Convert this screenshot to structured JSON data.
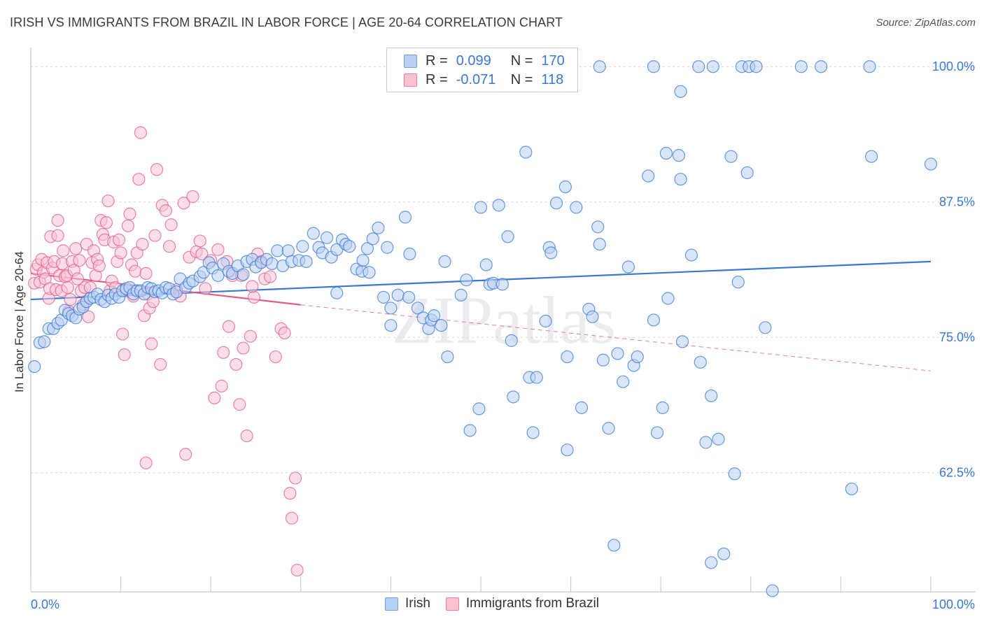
{
  "title": "IRISH VS IMMIGRANTS FROM BRAZIL IN LABOR FORCE | AGE 20-64 CORRELATION CHART",
  "source": "Source: ZipAtlas.com",
  "watermark": "ZIPatlas",
  "legend": {
    "r_label": "R =",
    "n_label": "N =",
    "rows": [
      {
        "name": "Irish",
        "r": "0.099",
        "n": "170",
        "color": "#6a9fe0",
        "fill": "#b9d0f2"
      },
      {
        "name": "Immigrants from Brazil",
        "r": "-0.071",
        "n": "118",
        "color": "#ec7fa0",
        "fill": "#f7c3d3"
      }
    ]
  },
  "chart_data": {
    "type": "scatter",
    "ylabel": "In Labor Force | Age 20-64",
    "xlim": [
      0,
      100
    ],
    "ylim": [
      51.5,
      101.5
    ],
    "y_ticks": [
      {
        "value": 100,
        "label": "100.0%"
      },
      {
        "value": 87.5,
        "label": "87.5%"
      },
      {
        "value": 75,
        "label": "75.0%"
      },
      {
        "value": 62.5,
        "label": "62.5%"
      }
    ],
    "x_tick_labels": {
      "left": "0.0%",
      "right": "100.0%"
    },
    "grid": "horizontal dashed",
    "series": [
      {
        "name": "Irish",
        "color": "#3a78d4",
        "fill": "#b9d0f2",
        "trend": {
          "x": [
            0,
            100
          ],
          "y": [
            78.5,
            82.0
          ],
          "dashed": false
        },
        "points": [
          [
            0.4,
            72.3
          ],
          [
            1.0,
            74.5
          ],
          [
            1.5,
            74.6
          ],
          [
            2.0,
            75.8
          ],
          [
            2.5,
            75.8
          ],
          [
            3.0,
            76.3
          ],
          [
            3.4,
            76.6
          ],
          [
            3.8,
            77.5
          ],
          [
            4.2,
            77.2
          ],
          [
            4.6,
            77.0
          ],
          [
            5.0,
            76.8
          ],
          [
            5.4,
            77.6
          ],
          [
            5.8,
            77.8
          ],
          [
            6.2,
            78.3
          ],
          [
            6.6,
            78.6
          ],
          [
            7.0,
            78.7
          ],
          [
            7.4,
            79.0
          ],
          [
            7.8,
            78.5
          ],
          [
            8.2,
            78.3
          ],
          [
            8.6,
            78.9
          ],
          [
            9.0,
            78.6
          ],
          [
            9.4,
            79.0
          ],
          [
            9.8,
            78.7
          ],
          [
            10.2,
            79.3
          ],
          [
            10.6,
            79.5
          ],
          [
            11.0,
            79.6
          ],
          [
            11.4,
            79.0
          ],
          [
            11.8,
            79.3
          ],
          [
            12.2,
            79.3
          ],
          [
            12.6,
            79.0
          ],
          [
            13.0,
            79.6
          ],
          [
            13.4,
            79.5
          ],
          [
            13.8,
            79.2
          ],
          [
            14.2,
            79.3
          ],
          [
            14.6,
            79.1
          ],
          [
            15.0,
            79.6
          ],
          [
            15.4,
            79.5
          ],
          [
            15.8,
            79.0
          ],
          [
            16.2,
            79.2
          ],
          [
            16.6,
            80.4
          ],
          [
            17.2,
            79.6
          ],
          [
            17.6,
            80.0
          ],
          [
            18.0,
            80.2
          ],
          [
            18.8,
            80.6
          ],
          [
            19.2,
            81.0
          ],
          [
            19.8,
            81.9
          ],
          [
            20.2,
            81.4
          ],
          [
            20.8,
            80.7
          ],
          [
            21.4,
            81.8
          ],
          [
            22.0,
            81.1
          ],
          [
            22.4,
            80.9
          ],
          [
            23.0,
            81.6
          ],
          [
            23.6,
            80.8
          ],
          [
            24.0,
            82.0
          ],
          [
            24.6,
            82.2
          ],
          [
            25.0,
            81.5
          ],
          [
            25.6,
            81.9
          ],
          [
            26.2,
            82.2
          ],
          [
            26.8,
            81.8
          ],
          [
            27.4,
            83.0
          ],
          [
            28.0,
            81.6
          ],
          [
            28.6,
            83.0
          ],
          [
            29.0,
            82.0
          ],
          [
            29.8,
            82.1
          ],
          [
            30.2,
            83.4
          ],
          [
            30.6,
            82.0
          ],
          [
            31.4,
            84.6
          ],
          [
            32.0,
            83.3
          ],
          [
            32.4,
            82.8
          ],
          [
            32.9,
            84.2
          ],
          [
            33.4,
            82.4
          ],
          [
            34.0,
            83.1
          ],
          [
            34.6,
            84.0
          ],
          [
            35.0,
            83.6
          ],
          [
            35.4,
            83.4
          ],
          [
            34.0,
            79.1
          ],
          [
            36.2,
            81.3
          ],
          [
            36.8,
            81.1
          ],
          [
            36.9,
            82.1
          ],
          [
            37.4,
            83.2
          ],
          [
            37.6,
            81.0
          ],
          [
            38.0,
            84.1
          ],
          [
            38.6,
            85.1
          ],
          [
            39.2,
            78.7
          ],
          [
            39.6,
            83.3
          ],
          [
            40.0,
            77.7
          ],
          [
            40.8,
            78.9
          ],
          [
            40.0,
            76.1
          ],
          [
            41.6,
            86.1
          ],
          [
            42.1,
            82.7
          ],
          [
            42.0,
            78.7
          ],
          [
            43.0,
            77.7
          ],
          [
            43.6,
            76.8
          ],
          [
            44.2,
            75.8
          ],
          [
            44.5,
            76.6
          ],
          [
            44.8,
            77.0
          ],
          [
            45.6,
            76.1
          ],
          [
            46.0,
            82.0
          ],
          [
            46.3,
            73.2
          ],
          [
            47.8,
            78.9
          ],
          [
            48.4,
            80.3
          ],
          [
            48.8,
            66.4
          ],
          [
            49.8,
            68.4
          ],
          [
            50.0,
            87.0
          ],
          [
            50.6,
            81.7
          ],
          [
            51.0,
            79.9
          ],
          [
            51.4,
            80.0
          ],
          [
            52.0,
            87.2
          ],
          [
            52.4,
            79.9
          ],
          [
            53.0,
            84.3
          ],
          [
            53.4,
            74.7
          ],
          [
            53.6,
            69.5
          ],
          [
            55.0,
            92.1
          ],
          [
            55.4,
            71.3
          ],
          [
            55.8,
            66.2
          ],
          [
            56.2,
            71.3
          ],
          [
            57.2,
            76.5
          ],
          [
            57.6,
            83.3
          ],
          [
            57.8,
            82.8
          ],
          [
            58.4,
            87.4
          ],
          [
            59.4,
            88.9
          ],
          [
            59.6,
            73.2
          ],
          [
            59.6,
            64.6
          ],
          [
            60.6,
            87.0
          ],
          [
            61.2,
            68.5
          ],
          [
            62.0,
            77.6
          ],
          [
            62.4,
            76.9
          ],
          [
            63.0,
            85.2
          ],
          [
            63.2,
            83.6
          ],
          [
            63.6,
            72.9
          ],
          [
            64.2,
            66.6
          ],
          [
            64.8,
            55.8
          ],
          [
            65.2,
            73.5
          ],
          [
            65.8,
            70.9
          ],
          [
            66.4,
            81.5
          ],
          [
            67.0,
            72.4
          ],
          [
            67.4,
            73.2
          ],
          [
            68.6,
            89.9
          ],
          [
            69.2,
            76.6
          ],
          [
            69.6,
            66.2
          ],
          [
            70.2,
            68.5
          ],
          [
            70.6,
            92.0
          ],
          [
            70.8,
            78.6
          ],
          [
            72.0,
            91.8
          ],
          [
            72.2,
            89.6
          ],
          [
            72.4,
            74.6
          ],
          [
            73.4,
            82.6
          ],
          [
            74.4,
            72.7
          ],
          [
            75.0,
            65.3
          ],
          [
            75.6,
            54.2
          ],
          [
            75.6,
            69.6
          ],
          [
            76.4,
            65.6
          ],
          [
            77.0,
            55.0
          ],
          [
            77.8,
            91.7
          ],
          [
            78.2,
            62.4
          ],
          [
            78.6,
            80.1
          ],
          [
            79.6,
            90.2
          ],
          [
            81.6,
            75.9
          ],
          [
            82.4,
            51.6
          ],
          [
            91.2,
            61.0
          ],
          [
            100.0,
            91.0
          ],
          [
            93.4,
            91.7
          ],
          [
            63.2,
            100.0
          ],
          [
            69.2,
            100.0
          ],
          [
            72.2,
            97.7
          ],
          [
            74.2,
            100.0
          ],
          [
            75.8,
            100.0
          ],
          [
            79.0,
            100.0
          ],
          [
            79.8,
            100.0
          ],
          [
            80.6,
            100.0
          ],
          [
            85.6,
            100.0
          ],
          [
            87.8,
            100.0
          ],
          [
            93.2,
            100.0
          ]
        ]
      },
      {
        "name": "Immigrants from Brazil",
        "color": "#e05c88",
        "fill": "#f7c3d3",
        "trend": {
          "x": [
            0,
            30
          ],
          "y": [
            80.9,
            78.0
          ],
          "dashed": false
        },
        "trend_ext": {
          "x": [
            30,
            100
          ],
          "y": [
            78.0,
            71.9
          ],
          "dashed": true
        },
        "points": [
          [
            0.4,
            80.0
          ],
          [
            0.6,
            81.3
          ],
          [
            0.8,
            81.7
          ],
          [
            1.0,
            80.1
          ],
          [
            1.2,
            82.2
          ],
          [
            1.4,
            81.0
          ],
          [
            1.6,
            80.4
          ],
          [
            1.8,
            81.9
          ],
          [
            2.0,
            78.6
          ],
          [
            2.1,
            79.5
          ],
          [
            2.2,
            84.3
          ],
          [
            2.4,
            81.4
          ],
          [
            2.6,
            82.0
          ],
          [
            2.8,
            79.4
          ],
          [
            3.0,
            84.4
          ],
          [
            3.0,
            85.8
          ],
          [
            3.2,
            80.7
          ],
          [
            3.4,
            79.3
          ],
          [
            3.5,
            81.8
          ],
          [
            3.6,
            83.0
          ],
          [
            3.8,
            80.6
          ],
          [
            4.0,
            80.7
          ],
          [
            4.1,
            79.6
          ],
          [
            4.2,
            77.4
          ],
          [
            4.4,
            78.5
          ],
          [
            4.6,
            82.0
          ],
          [
            4.8,
            81.2
          ],
          [
            5.0,
            83.2
          ],
          [
            5.2,
            80.4
          ],
          [
            5.4,
            82.1
          ],
          [
            5.6,
            79.3
          ],
          [
            5.8,
            78.0
          ],
          [
            6.0,
            79.6
          ],
          [
            6.2,
            83.6
          ],
          [
            6.4,
            76.9
          ],
          [
            6.6,
            79.6
          ],
          [
            6.8,
            81.9
          ],
          [
            7.0,
            83.0
          ],
          [
            7.2,
            80.7
          ],
          [
            7.4,
            82.2
          ],
          [
            7.6,
            81.6
          ],
          [
            7.8,
            85.8
          ],
          [
            8.0,
            84.5
          ],
          [
            8.2,
            84.0
          ],
          [
            8.4,
            85.6
          ],
          [
            8.6,
            87.6
          ],
          [
            8.8,
            79.3
          ],
          [
            9.0,
            80.2
          ],
          [
            9.2,
            83.8
          ],
          [
            9.4,
            79.6
          ],
          [
            9.6,
            82.0
          ],
          [
            9.8,
            84.0
          ],
          [
            10.0,
            82.8
          ],
          [
            10.2,
            75.3
          ],
          [
            10.4,
            73.4
          ],
          [
            10.6,
            79.3
          ],
          [
            10.8,
            85.3
          ],
          [
            11.0,
            86.4
          ],
          [
            11.2,
            81.7
          ],
          [
            11.4,
            78.8
          ],
          [
            11.6,
            81.1
          ],
          [
            11.8,
            82.8
          ],
          [
            12.0,
            89.6
          ],
          [
            12.2,
            93.9
          ],
          [
            12.4,
            83.6
          ],
          [
            12.6,
            77.0
          ],
          [
            12.8,
            80.9
          ],
          [
            13.0,
            79.0
          ],
          [
            13.2,
            77.7
          ],
          [
            13.4,
            74.4
          ],
          [
            13.6,
            78.3
          ],
          [
            13.8,
            84.4
          ],
          [
            14.0,
            90.5
          ],
          [
            14.4,
            72.5
          ],
          [
            14.6,
            87.2
          ],
          [
            15.0,
            86.7
          ],
          [
            15.4,
            83.4
          ],
          [
            15.6,
            85.4
          ],
          [
            16.2,
            79.4
          ],
          [
            16.6,
            78.8
          ],
          [
            17.0,
            87.4
          ],
          [
            17.6,
            82.4
          ],
          [
            18.0,
            88.0
          ],
          [
            18.4,
            82.9
          ],
          [
            18.8,
            83.9
          ],
          [
            19.0,
            82.7
          ],
          [
            19.4,
            79.5
          ],
          [
            20.0,
            82.1
          ],
          [
            20.8,
            83.1
          ],
          [
            21.2,
            70.5
          ],
          [
            21.8,
            82.0
          ],
          [
            22.0,
            76.0
          ],
          [
            22.4,
            80.7
          ],
          [
            22.8,
            72.5
          ],
          [
            23.2,
            68.8
          ],
          [
            23.6,
            74.0
          ],
          [
            24.0,
            65.9
          ],
          [
            24.4,
            75.1
          ],
          [
            24.8,
            78.7
          ],
          [
            25.2,
            82.7
          ],
          [
            25.6,
            82.0
          ],
          [
            26.0,
            80.4
          ],
          [
            26.6,
            80.6
          ],
          [
            27.2,
            73.2
          ],
          [
            27.8,
            75.8
          ],
          [
            28.2,
            75.4
          ],
          [
            28.8,
            60.6
          ],
          [
            29.0,
            58.3
          ],
          [
            29.4,
            62.0
          ],
          [
            29.6,
            53.5
          ],
          [
            20.4,
            69.4
          ],
          [
            21.4,
            73.6
          ],
          [
            23.4,
            80.7
          ],
          [
            24.6,
            79.7
          ],
          [
            17.2,
            64.2
          ],
          [
            12.8,
            63.4
          ]
        ]
      }
    ]
  }
}
